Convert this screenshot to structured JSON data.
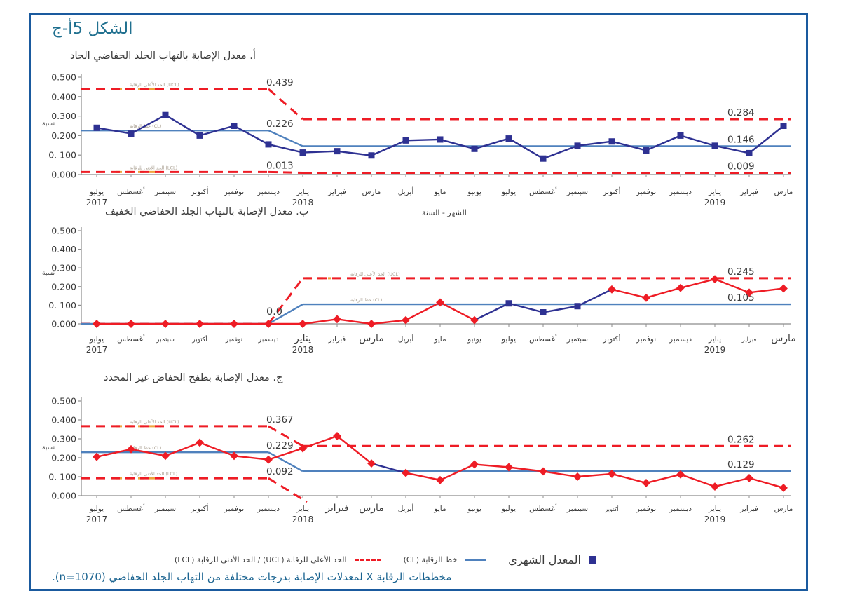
{
  "figure": {
    "title": "الشكل 5أ-ج",
    "caption": "مخططات الرقابة X لمعدلات الإصابة بدرجات مختلفة من التهاب الجلد الحفاضي (n=1070).",
    "line_annotations": {
      "ucl": "الحد الأعلى للرقابة (UCL)",
      "cl": "خط الرقابة (CL)",
      "lcl": "الحد الأدنى للرقابة (LCL)"
    }
  },
  "legend": {
    "monthly_rate": "المعدل الشهري",
    "cl": "خط الرقابة (CL)",
    "ucl_lcl": "الحد الأعلى للرقابة (UCL) / الحد الأدنى للرقابة (LCL)"
  },
  "colors": {
    "navy": "#2e3192",
    "red": "#ee1c25",
    "cl_blue": "#4f81bd",
    "axis": "#8c8c8c",
    "text": "#3a3a3a",
    "faint": "#aaa092",
    "orange": "#f0a33c",
    "border": "#1a5a9e",
    "teal": "#20708f"
  },
  "chart_data": [
    {
      "id": "a",
      "type": "line",
      "title": "أ. معدل الإصابة بالتهاب الجلد الحفاضي الحاد",
      "ylabel": "نسبة",
      "xlabel": "الشهر - السنة",
      "ylim": [
        0,
        0.5
      ],
      "yticks": [
        "0.500",
        "0.400",
        "0.300",
        "0.200",
        "0. 100",
        "0.000"
      ],
      "months": [
        "يوليو",
        "أغسطس",
        "سبتمبر",
        "أكتوبر",
        "نوفمبر",
        "ديسمبر",
        "يناير",
        "فبراير",
        "مارس",
        "أبريل",
        "مايو",
        "يونيو",
        "يوليو",
        "أغسطس",
        "سبتمبر",
        "أكتوبر",
        "نوفمبر",
        "ديسمبر",
        "يناير",
        "فبراير",
        "مارس"
      ],
      "years": {
        "0": "2017",
        "6": "2018",
        "18": "2019"
      },
      "values": [
        0.24,
        0.21,
        0.305,
        0.2,
        0.25,
        0.155,
        0.113,
        0.12,
        0.098,
        0.175,
        0.18,
        0.132,
        0.185,
        0.082,
        0.148,
        0.17,
        0.124,
        0.2,
        0.148,
        0.11,
        0.25
      ],
      "marker": "square",
      "marker_color": "#2e3192",
      "line_color": "#2e3192",
      "ucl": [
        0.439,
        0.284
      ],
      "cl": [
        0.226,
        0.146
      ],
      "lcl": [
        0.013,
        0.009
      ],
      "break_labels": {
        "ucl": "0.439",
        "cl": "0.226",
        "lcl": "0.013"
      },
      "end_labels": {
        "ucl": "0.284",
        "cl": "0.146",
        "lcl": "0.009"
      },
      "annotations": [
        "ucl",
        "cl",
        "lcl"
      ]
    },
    {
      "id": "b",
      "type": "line",
      "title": "ب. معدل الإصابة بالتهاب الجلد الحفاضي الخفيف",
      "ylabel": "نسبة",
      "ylim": [
        0,
        0.5
      ],
      "yticks": [
        "0.500",
        "0.400",
        "0.300",
        "0.200",
        "0. 100",
        "0.000"
      ],
      "months": [
        "يوليو",
        "أغسطس",
        "سبتمبر",
        "أكتوبر",
        "نوفمبر",
        "ديسمبر",
        "يناير",
        "فبراير",
        "مارس",
        "أبريل",
        "مايو",
        "يونيو",
        "يوليو",
        "أغسطس",
        "سبتمبر",
        "أكتوبر",
        "نوفمبر",
        "ديسمبر",
        "يناير",
        "فبراير",
        "مارس"
      ],
      "years": {
        "0": "2017",
        "6": "2018",
        "18": "2019"
      },
      "values": [
        0,
        0,
        0,
        0,
        0,
        0,
        0,
        0.025,
        0,
        0.02,
        0.115,
        0.02,
        0.11,
        0.062,
        0.095,
        0.185,
        0.14,
        0.193,
        0.24,
        0.168,
        0.19
      ],
      "marker": "diamond",
      "marker_color": "#ee1c25",
      "line_color": "#ee1c25",
      "navy_segments": [
        11,
        12,
        13,
        14
      ],
      "marker_overrides": {
        "12": "square",
        "13": "square",
        "14": "square"
      },
      "label_sizes": {
        "2": 9,
        "3": 9,
        "4": 9,
        "5": 9.5,
        "6": 14,
        "7": 10,
        "8": 14,
        "19": 8.5,
        "20": 14
      },
      "ucl": [
        0,
        0.245
      ],
      "cl": [
        0,
        0.105
      ],
      "lcl": [
        0,
        null
      ],
      "break_labels": {
        "zero": "0.0"
      },
      "end_labels": {
        "ucl": "0.245",
        "cl": "0.105"
      },
      "annotations": [
        "ucl",
        "cl"
      ]
    },
    {
      "id": "c",
      "type": "line",
      "title": "ج. معدل الإصابة بطفح الحفاض غير المحدد",
      "ylabel": "نسبة",
      "ylim": [
        0,
        0.5
      ],
      "yticks": [
        "0.500",
        "0.400",
        "0.300",
        "0.200",
        "0. 100",
        "0.000"
      ],
      "months": [
        "يوليو",
        "أغسطس",
        "سبتمبر",
        "أكتوبر",
        "نوفمبر",
        "ديسمبر",
        "يناير",
        "فبراير",
        "مارس",
        "أبريل",
        "مايو",
        "يونيو",
        "يوليو",
        "أغسطس",
        "سبتمبر",
        "أكتوبر",
        "نوفمبر",
        "ديسمبر",
        "يناير",
        "فبراير",
        "مارس"
      ],
      "years": {
        "0": "2017",
        "6": "2018",
        "18": "2019"
      },
      "values": [
        0.205,
        0.245,
        0.21,
        0.28,
        0.21,
        0.19,
        0.25,
        0.315,
        0.17,
        0.12,
        0.082,
        0.165,
        0.15,
        0.128,
        0.1,
        0.115,
        0.067,
        0.112,
        0.048,
        0.093,
        0.041
      ],
      "marker": "diamond",
      "marker_color": "#ee1c25",
      "line_color": "#ee1c25",
      "navy_segments": [
        8
      ],
      "label_sizes": {
        "7": 13.5,
        "8": 14,
        "15": 8
      },
      "ucl": [
        0.367,
        0.262
      ],
      "cl": [
        0.229,
        0.129
      ],
      "lcl": [
        0.092,
        null
      ],
      "break_labels": {
        "ucl": "0.367",
        "cl": "0.229",
        "lcl": "0.092"
      },
      "end_labels": {
        "ucl": "0.262",
        "cl": "0.129"
      },
      "annotations": [
        "ucl",
        "cl",
        "lcl"
      ]
    }
  ]
}
